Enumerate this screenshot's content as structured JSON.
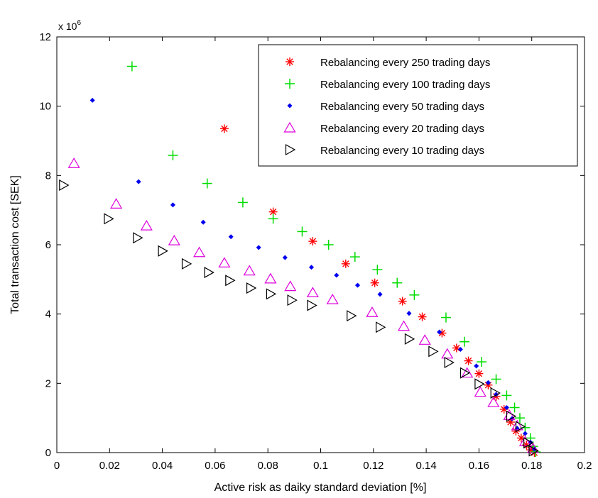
{
  "chart_data": {
    "type": "scatter",
    "xlabel": "Active risk as daiky standard deviation [%]",
    "ylabel": "Total transaction cost [SEK]",
    "y_scale_note": "x 10",
    "y_scale_exponent": "6",
    "xlim": [
      0,
      0.2
    ],
    "ylim": [
      0,
      12
    ],
    "x_ticks": [
      "0",
      "0.02",
      "0.04",
      "0.06",
      "0.08",
      "0.1",
      "0.12",
      "0.14",
      "0.16",
      "0.18",
      "0.2"
    ],
    "y_ticks": [
      "0",
      "2",
      "4",
      "6",
      "8",
      "10",
      "12"
    ],
    "legend_position": "top-right",
    "grid": false,
    "series": [
      {
        "name": "Rebalancing every 250 trading days",
        "marker": "asterisk",
        "color": "#ff0000",
        "points": [
          [
            0.0635,
            9.35
          ],
          [
            0.082,
            6.95
          ],
          [
            0.097,
            6.1
          ],
          [
            0.1095,
            5.45
          ],
          [
            0.1205,
            4.9
          ],
          [
            0.131,
            4.37
          ],
          [
            0.1385,
            3.92
          ],
          [
            0.146,
            3.45
          ],
          [
            0.1515,
            3.02
          ],
          [
            0.156,
            2.65
          ],
          [
            0.16,
            2.28
          ],
          [
            0.1635,
            1.95
          ],
          [
            0.1665,
            1.62
          ],
          [
            0.1695,
            1.25
          ],
          [
            0.172,
            0.88
          ],
          [
            0.174,
            0.62
          ],
          [
            0.176,
            0.42
          ],
          [
            0.178,
            0.22
          ],
          [
            0.1795,
            0.08
          ],
          [
            0.181,
            0.0
          ]
        ]
      },
      {
        "name": "Rebalancing every 100 trading days",
        "marker": "plus",
        "color": "#00dd00",
        "points": [
          [
            0.0285,
            11.15
          ],
          [
            0.044,
            8.58
          ],
          [
            0.057,
            7.77
          ],
          [
            0.0705,
            7.22
          ],
          [
            0.082,
            6.75
          ],
          [
            0.093,
            6.38
          ],
          [
            0.103,
            6.0
          ],
          [
            0.113,
            5.65
          ],
          [
            0.1215,
            5.28
          ],
          [
            0.129,
            4.9
          ],
          [
            0.1355,
            4.55
          ],
          [
            0.1475,
            3.9
          ],
          [
            0.1545,
            3.2
          ],
          [
            0.161,
            2.62
          ],
          [
            0.1665,
            2.12
          ],
          [
            0.1705,
            1.65
          ],
          [
            0.1735,
            1.3
          ],
          [
            0.1755,
            1.0
          ],
          [
            0.1775,
            0.72
          ],
          [
            0.1795,
            0.42
          ],
          [
            0.1805,
            0.18
          ],
          [
            0.1815,
            0.02
          ]
        ]
      },
      {
        "name": "Rebalancing every 50 trading days",
        "marker": "dot",
        "color": "#0000ee",
        "points": [
          [
            0.0135,
            10.17
          ],
          [
            0.031,
            7.82
          ],
          [
            0.044,
            7.15
          ],
          [
            0.0555,
            6.65
          ],
          [
            0.066,
            6.23
          ],
          [
            0.0765,
            5.92
          ],
          [
            0.0865,
            5.63
          ],
          [
            0.0965,
            5.35
          ],
          [
            0.106,
            5.12
          ],
          [
            0.114,
            4.83
          ],
          [
            0.1225,
            4.57
          ],
          [
            0.1335,
            4.02
          ],
          [
            0.145,
            3.48
          ],
          [
            0.153,
            2.98
          ],
          [
            0.159,
            2.5
          ],
          [
            0.1635,
            2.02
          ],
          [
            0.1665,
            1.68
          ],
          [
            0.1705,
            1.3
          ],
          [
            0.1725,
            0.98
          ],
          [
            0.1745,
            0.7
          ],
          [
            0.1775,
            0.55
          ],
          [
            0.1795,
            0.3
          ],
          [
            0.181,
            0.1
          ]
        ]
      },
      {
        "name": "Rebalancing every 20 trading days",
        "marker": "triangle-up",
        "color": "#dd00dd",
        "points": [
          [
            0.0065,
            8.35
          ],
          [
            0.0225,
            7.18
          ],
          [
            0.034,
            6.55
          ],
          [
            0.0445,
            6.12
          ],
          [
            0.054,
            5.78
          ],
          [
            0.0635,
            5.48
          ],
          [
            0.073,
            5.25
          ],
          [
            0.081,
            5.02
          ],
          [
            0.0885,
            4.8
          ],
          [
            0.097,
            4.62
          ],
          [
            0.1045,
            4.42
          ],
          [
            0.1195,
            4.05
          ],
          [
            0.1315,
            3.65
          ],
          [
            0.1395,
            3.25
          ],
          [
            0.148,
            2.85
          ],
          [
            0.1555,
            2.3
          ],
          [
            0.1605,
            1.75
          ],
          [
            0.1655,
            1.45
          ],
          [
            0.1715,
            1.08
          ],
          [
            0.1745,
            0.78
          ],
          [
            0.1775,
            0.32
          ],
          [
            0.1805,
            0.12
          ]
        ]
      },
      {
        "name": "Rebalancing every 10 trading days",
        "marker": "triangle-right",
        "color": "#000000",
        "points": [
          [
            0.0025,
            7.72
          ],
          [
            0.0195,
            6.75
          ],
          [
            0.0305,
            6.2
          ],
          [
            0.04,
            5.82
          ],
          [
            0.049,
            5.45
          ],
          [
            0.0575,
            5.2
          ],
          [
            0.0655,
            4.97
          ],
          [
            0.0735,
            4.75
          ],
          [
            0.081,
            4.58
          ],
          [
            0.089,
            4.4
          ],
          [
            0.0965,
            4.25
          ],
          [
            0.1115,
            3.95
          ],
          [
            0.1225,
            3.62
          ],
          [
            0.1335,
            3.28
          ],
          [
            0.1425,
            2.92
          ],
          [
            0.1485,
            2.6
          ],
          [
            0.1545,
            2.3
          ],
          [
            0.16,
            1.98
          ],
          [
            0.166,
            1.72
          ],
          [
            0.172,
            1.05
          ],
          [
            0.1755,
            0.75
          ],
          [
            0.1785,
            0.28
          ],
          [
            0.1805,
            0.05
          ]
        ]
      }
    ]
  }
}
